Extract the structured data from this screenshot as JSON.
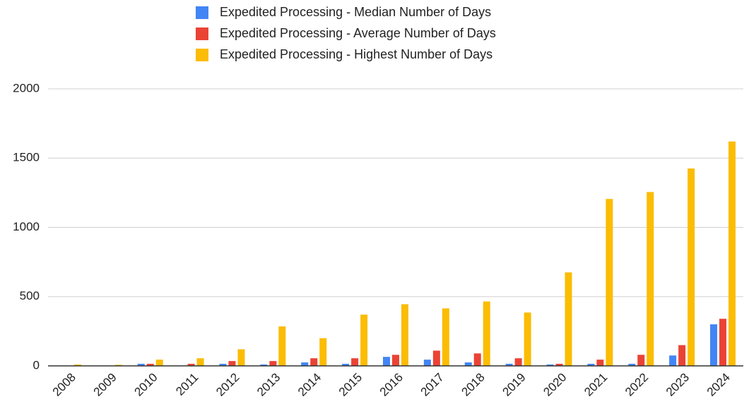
{
  "chart_data": {
    "type": "bar",
    "categories": [
      "2008",
      "2009",
      "2010",
      "2011",
      "2012",
      "2013",
      "2014",
      "2015",
      "2016",
      "2017",
      "2018",
      "2019",
      "2020",
      "2021",
      "2022",
      "2023",
      "2024"
    ],
    "series": [
      {
        "name": "Expedited Processing - Median Number of Days",
        "color": "#4285f4",
        "values": [
          0,
          0,
          15,
          0,
          15,
          10,
          25,
          15,
          65,
          45,
          25,
          15,
          10,
          15,
          15,
          75,
          300
        ]
      },
      {
        "name": "Expedited Processing - Average Number of Days",
        "color": "#ea4335",
        "values": [
          0,
          0,
          15,
          15,
          35,
          35,
          55,
          55,
          80,
          110,
          90,
          55,
          15,
          45,
          80,
          150,
          340
        ]
      },
      {
        "name": "Expedited Processing - Highest Number of Days",
        "color": "#fbbc04",
        "values": [
          10,
          8,
          45,
          55,
          120,
          285,
          200,
          370,
          445,
          415,
          465,
          385,
          675,
          1205,
          1255,
          1425,
          1620
        ]
      }
    ],
    "ylim": [
      0,
      2000
    ],
    "yticks": [
      0,
      500,
      1000,
      1500,
      2000
    ],
    "grid": true,
    "legend": "top"
  }
}
